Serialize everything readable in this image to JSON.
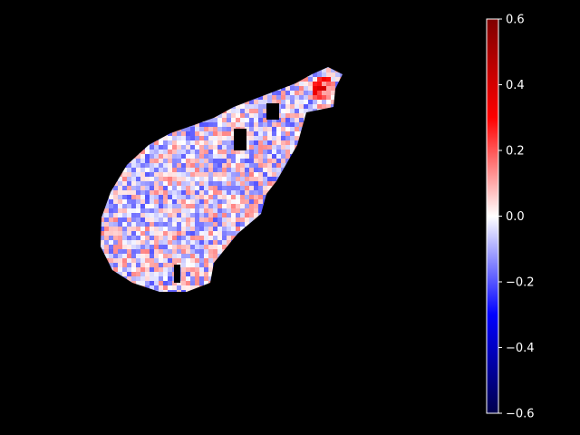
{
  "chart_data": {
    "type": "heatmap",
    "title": "",
    "xlabel": "",
    "ylabel": "",
    "background": "#000000",
    "axes_visible": false,
    "colormap": "seismic",
    "colormap_stops": [
      "#00004c",
      "#0000ff",
      "#ffffff",
      "#ff0000",
      "#7f0000"
    ],
    "color_range": [
      -0.6,
      0.6
    ],
    "colorbar": {
      "placement": "right",
      "ticks": [
        0.6,
        0.4,
        0.2,
        0.0,
        -0.2,
        -0.4,
        -0.6
      ],
      "tick_labels": [
        "0.6",
        "0.4",
        "0.2",
        "0.0",
        "−0.2",
        "−0.4",
        "−0.6"
      ]
    },
    "summary": {
      "typical_value_range": [
        -0.2,
        0.15
      ],
      "peak_value": 0.45,
      "peak_location": "upper-right tip"
    }
  }
}
